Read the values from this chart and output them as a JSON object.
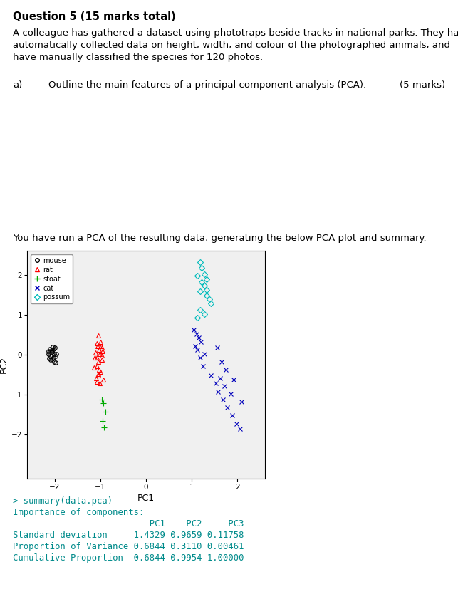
{
  "title_bold": "Question 5 (15 marks total)",
  "intro_text": "A colleague has gathered a dataset using phototraps beside tracks in national parks. They have\nautomatically collected data on height, width, and colour of the photographed animals, and\nhave manually classified the species for 120 photos.",
  "part_a_label": "a)",
  "part_a_text": "Outline the main features of a principal component analysis (PCA).",
  "part_a_marks": "(5 marks)",
  "pca_intro": "You have run a PCA of the resulting data, generating the below PCA plot and summary.",
  "xlabel": "PC1",
  "ylabel": "PC2",
  "xlim": [
    -2.6,
    2.6
  ],
  "ylim": [
    -3.1,
    2.6
  ],
  "xticks": [
    -2,
    -1,
    0,
    1,
    2
  ],
  "yticks": [
    -2,
    -1,
    0,
    1,
    2
  ],
  "species": {
    "mouse": {
      "color": "#000000",
      "marker": "o",
      "markersize": 4,
      "fillstyle": "none",
      "pc1": [
        -2.1,
        -2.06,
        -2.02,
        -2.14,
        -2.0,
        -1.97,
        -2.05,
        -2.09,
        -2.01,
        -2.07,
        -1.96,
        -2.12,
        -2.03,
        -2.08,
        -2.13,
        -1.98,
        -2.01,
        -2.11,
        -2.06,
        -2.04
      ],
      "pc2": [
        0.15,
        0.07,
        -0.08,
        0.02,
        0.18,
        -0.04,
        0.12,
        -0.13,
        -0.18,
        0.06,
        0.01,
        -0.09,
        0.14,
        -0.03,
        0.09,
        -0.19,
        0.01,
        0.06,
        -0.11,
        0.19
      ]
    },
    "rat": {
      "color": "#FF0000",
      "marker": "^",
      "markersize": 5,
      "fillstyle": "none",
      "pc1": [
        -1.05,
        -1.0,
        -0.97,
        -1.1,
        -1.02,
        -0.98,
        -1.07,
        -1.04,
        -0.95,
        -1.08,
        -1.01,
        -1.12,
        -1.06,
        -0.96,
        -1.03,
        -1.09,
        -1.05,
        -0.93,
        -1.07,
        -1.01,
        -1.08,
        -0.97,
        -1.13,
        -1.04,
        -1.0
      ],
      "pc2": [
        0.48,
        0.32,
        0.18,
        0.05,
        0.12,
        0.22,
        -0.08,
        -0.18,
        0.08,
        -0.28,
        0.02,
        -0.08,
        0.22,
        -0.12,
        -0.38,
        -0.58,
        -0.52,
        -0.62,
        -0.68,
        -0.72,
        0.28,
        -0.02,
        -0.32,
        -0.48,
        -0.42
      ]
    },
    "stoat": {
      "color": "#00AA00",
      "marker": "+",
      "markersize": 6,
      "fillstyle": "full",
      "pc1": [
        -0.97,
        -0.93,
        -0.88,
        -0.95,
        -0.92
      ],
      "pc2": [
        -1.12,
        -1.22,
        -1.42,
        -1.65,
        -1.82
      ]
    },
    "cat": {
      "color": "#0000BB",
      "marker": "x",
      "markersize": 5,
      "fillstyle": "full",
      "pc1": [
        1.05,
        1.1,
        1.15,
        1.2,
        1.08,
        1.12,
        1.28,
        1.18,
        1.25,
        1.42,
        1.52,
        1.58,
        1.68,
        1.78,
        1.88,
        1.98,
        1.62,
        1.72,
        1.85,
        2.08,
        1.55,
        1.65,
        1.75,
        1.92,
        2.05
      ],
      "pc2": [
        0.62,
        0.52,
        0.42,
        0.32,
        0.22,
        0.12,
        0.02,
        -0.08,
        -0.28,
        -0.52,
        -0.72,
        -0.92,
        -1.12,
        -1.32,
        -1.52,
        -1.72,
        -0.58,
        -0.78,
        -0.98,
        -1.18,
        0.18,
        -0.18,
        -0.38,
        -0.62,
        -1.85
      ]
    },
    "possum": {
      "color": "#00BBBB",
      "marker": "D",
      "markersize": 4,
      "fillstyle": "none",
      "pc1": [
        1.18,
        1.22,
        1.28,
        1.32,
        1.12,
        1.22,
        1.28,
        1.18,
        1.32,
        1.38,
        1.42,
        1.18,
        1.28,
        1.12,
        1.32
      ],
      "pc2": [
        2.32,
        2.18,
        2.02,
        1.88,
        1.98,
        1.82,
        1.72,
        1.58,
        1.48,
        1.38,
        1.28,
        1.12,
        1.02,
        0.92,
        1.62
      ]
    }
  },
  "summary_lines": [
    "> summary(data.pca)",
    "Importance of components:",
    "                          PC1    PC2     PC3",
    "Standard deviation     1.4329 0.9659 0.11758",
    "Proportion of Variance 0.6844 0.3110 0.00461",
    "Cumulative Proportion  0.6844 0.9954 1.00000"
  ],
  "summary_color": "#008B8B",
  "bg_color": "#FFFFFF",
  "plot_bg": "#F0F0F0"
}
